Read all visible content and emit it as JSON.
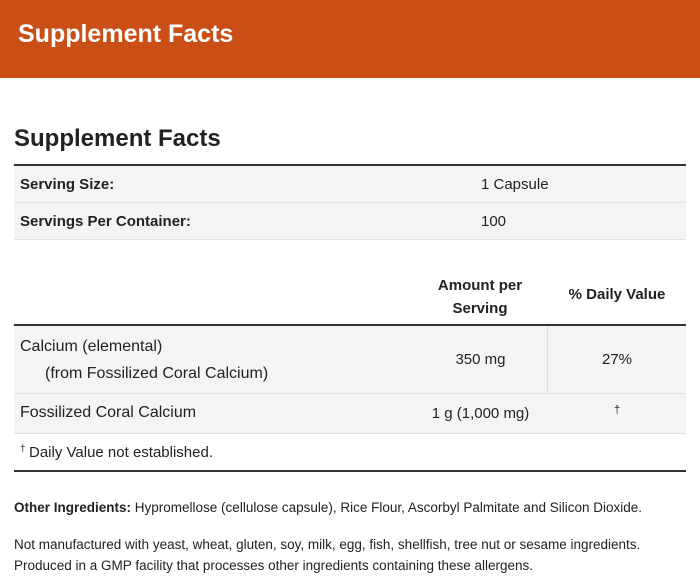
{
  "header": {
    "title": "Supplement Facts"
  },
  "facts": {
    "title": "Supplement Facts",
    "serving": [
      {
        "label": "Serving Size:",
        "value": "1 Capsule"
      },
      {
        "label": "Servings Per Container:",
        "value": "100"
      }
    ],
    "columns": [
      "Amount per Serving",
      "% Daily Value"
    ],
    "rows": [
      {
        "name": "Calcium (elemental)",
        "sub": "(from Fossilized Coral Calcium)",
        "amount": "350 mg",
        "dv": "27%"
      },
      {
        "name": "Fossilized Coral Calcium",
        "amount": "1 g (1,000 mg)",
        "dv": "†"
      }
    ],
    "footnote": {
      "symbol": "†",
      "text": "Daily Value not established."
    }
  },
  "other": {
    "label": "Other Ingredients:",
    "text": "Hypromellose (cellulose capsule), Rice Flour, Ascorbyl Palmitate and Silicon Dioxide."
  },
  "notes": [
    "Not manufactured with yeast, wheat, gluten, soy, milk, egg, fish, shellfish, tree nut or sesame ingredients.",
    "Produced in a GMP facility that processes other ingredients containing these allergens."
  ]
}
